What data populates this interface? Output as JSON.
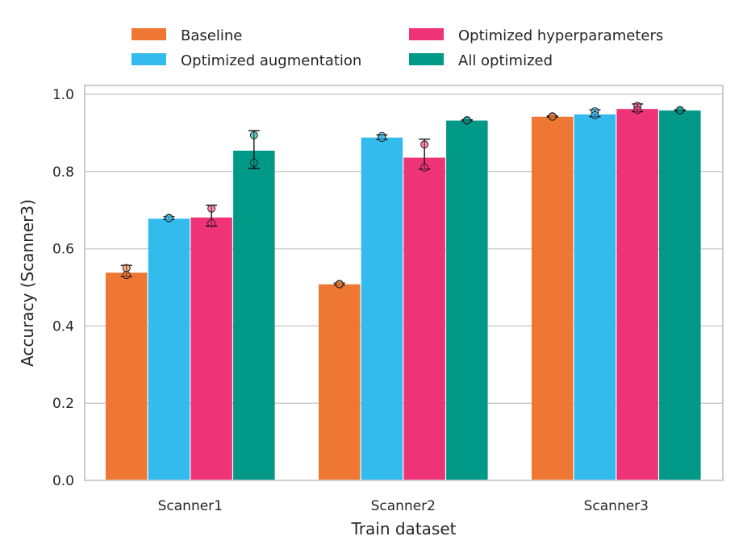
{
  "chart_data": {
    "type": "bar",
    "xlabel": "Train dataset",
    "ylabel": "Accuracy (Scanner3)",
    "ylim": [
      0.0,
      1.0
    ],
    "yticks": [
      "0.0",
      "0.2",
      "0.4",
      "0.6",
      "0.8",
      "1.0"
    ],
    "grid": "horizontal",
    "legend_placement": "top-center",
    "categories": [
      "Scanner1",
      "Scanner2",
      "Scanner3"
    ],
    "series": [
      {
        "name": "Baseline",
        "color": "#ee7733",
        "values": [
          0.538,
          0.508,
          0.942
        ],
        "error_low": [
          0.528,
          0.506,
          0.941
        ],
        "error_high": [
          0.557,
          0.511,
          0.944
        ],
        "points": [
          [
            0.532,
            0.55
          ],
          [
            0.509,
            0.508
          ],
          [
            0.943,
            0.942
          ]
        ]
      },
      {
        "name": "Optimized augmentation",
        "color": "#33bbee",
        "values": [
          0.678,
          0.888,
          0.948
        ],
        "error_low": [
          0.676,
          0.883,
          0.942
        ],
        "error_high": [
          0.683,
          0.895,
          0.96
        ],
        "points": [
          [
            0.68,
            0.679
          ],
          [
            0.892,
            0.887
          ],
          [
            0.956,
            0.946
          ]
        ]
      },
      {
        "name": "Optimized hyperparameters",
        "color": "#ee3377",
        "values": [
          0.681,
          0.836,
          0.962
        ],
        "error_low": [
          0.659,
          0.806,
          0.955
        ],
        "error_high": [
          0.713,
          0.884,
          0.975
        ],
        "points": [
          [
            0.704,
            0.666
          ],
          [
            0.87,
            0.81
          ],
          [
            0.97,
            0.96
          ]
        ]
      },
      {
        "name": "All optimized",
        "color": "#009988",
        "values": [
          0.854,
          0.932,
          0.958
        ],
        "error_low": [
          0.808,
          0.931,
          0.957
        ],
        "error_high": [
          0.906,
          0.934,
          0.96
        ],
        "points": [
          [
            0.894,
            0.823
          ],
          [
            0.932,
            0.933
          ],
          [
            0.958,
            0.959
          ]
        ]
      }
    ]
  }
}
